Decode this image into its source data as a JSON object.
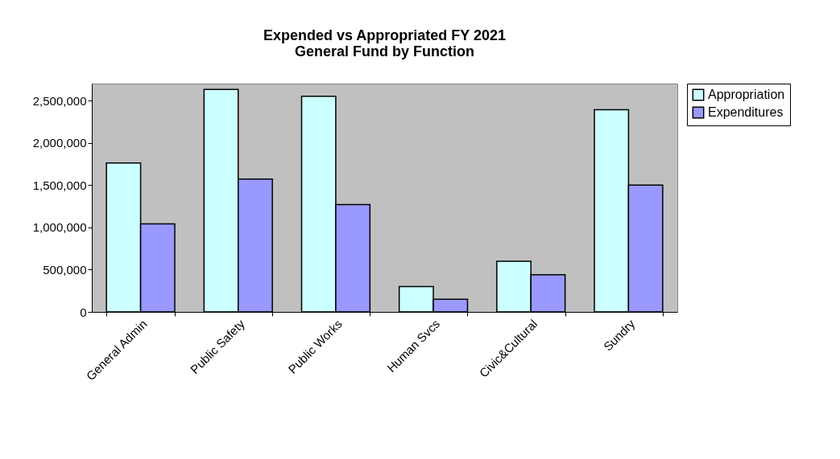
{
  "chart_data": {
    "type": "bar",
    "title": "Expended vs Appropriated FY 2021\nGeneral Fund by Function",
    "categories": [
      "General Admin",
      "Public Safety",
      "Public Works",
      "Human Svcs",
      "Civic&Cultural",
      "Sundry"
    ],
    "series": [
      {
        "name": "Appropriation",
        "color": "#ccffff",
        "values": [
          1760000,
          2630000,
          2550000,
          300000,
          600000,
          2390000
        ]
      },
      {
        "name": "Expenditures",
        "color": "#9999ff",
        "values": [
          1040000,
          1570000,
          1270000,
          150000,
          440000,
          1500000
        ]
      }
    ],
    "ylim": [
      0,
      2700000
    ],
    "yticks": [
      {
        "value": 0,
        "label": "0"
      },
      {
        "value": 500000,
        "label": "500,000"
      },
      {
        "value": 1000000,
        "label": "1,000,000"
      },
      {
        "value": 1500000,
        "label": "1,500,000"
      },
      {
        "value": 2000000,
        "label": "2,000,000"
      },
      {
        "value": 2500000,
        "label": "2,500,000"
      }
    ],
    "grid": false,
    "legend": "right"
  }
}
